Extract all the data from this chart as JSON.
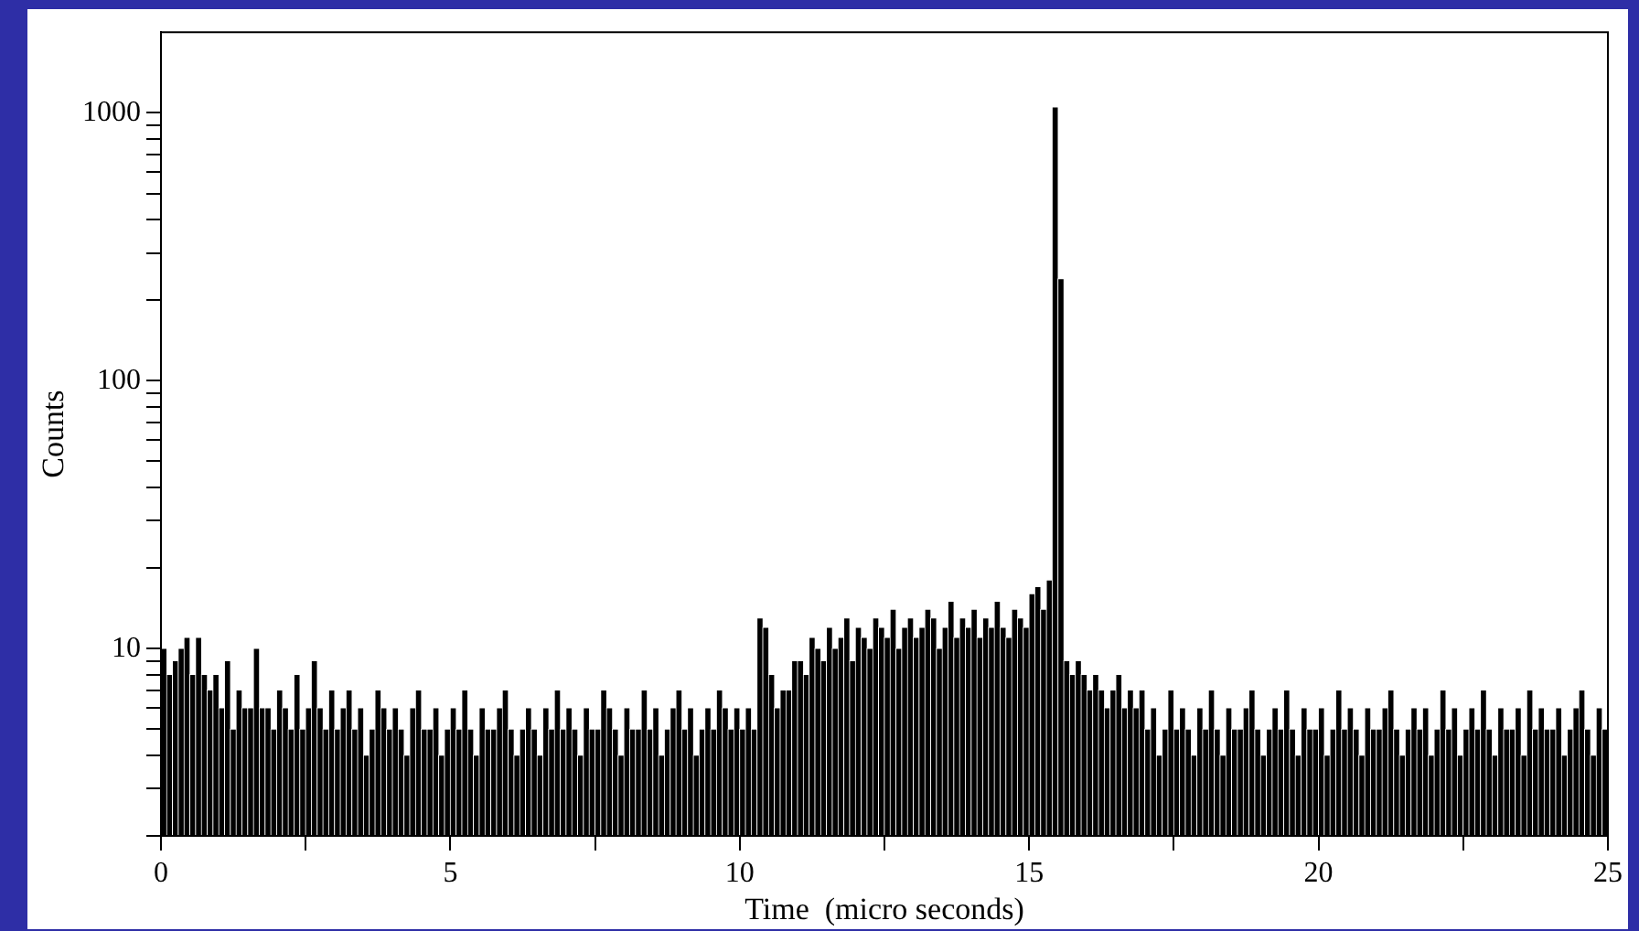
{
  "chart_data": {
    "type": "histogram",
    "xlabel": "Time  (micro seconds)",
    "ylabel": "Counts",
    "color": "#000000",
    "log": "y",
    "grid": false,
    "legend": false,
    "xlim": [
      0,
      25
    ],
    "xticks": [
      0,
      {
        "value": 2.5,
        "label": null
      },
      5,
      {
        "value": 7.5,
        "label": null
      },
      10,
      {
        "value": 12.5,
        "label": null
      },
      15,
      {
        "value": 17.5,
        "label": null
      },
      20,
      {
        "value": 22.5,
        "label": null
      },
      25
    ],
    "ylim": [
      2,
      2000
    ],
    "yticks": [
      {
        "value": 2,
        "label": null
      },
      {
        "value": 3,
        "label": null
      },
      {
        "value": 4,
        "label": null
      },
      {
        "value": 5,
        "label": null
      },
      {
        "value": 6,
        "label": null
      },
      {
        "value": 7,
        "label": null
      },
      {
        "value": 8,
        "label": null
      },
      {
        "value": 9,
        "label": null
      },
      10,
      {
        "value": 20,
        "label": null
      },
      {
        "value": 30,
        "label": null
      },
      {
        "value": 40,
        "label": null
      },
      {
        "value": 50,
        "label": null
      },
      {
        "value": 60,
        "label": null
      },
      {
        "value": 70,
        "label": null
      },
      {
        "value": 80,
        "label": null
      },
      {
        "value": 90,
        "label": null
      },
      100,
      {
        "value": 200,
        "label": null
      },
      {
        "value": 300,
        "label": null
      },
      {
        "value": 400,
        "label": null
      },
      {
        "value": 500,
        "label": null
      },
      {
        "value": 600,
        "label": null
      },
      {
        "value": 700,
        "label": null
      },
      {
        "value": 800,
        "label": null
      },
      {
        "value": 900,
        "label": null
      },
      1000
    ],
    "bins": [
      0,
      0.1,
      0.2,
      0.3,
      0.4,
      0.5,
      0.6,
      0.7,
      0.8,
      0.9,
      1,
      1.1,
      1.2,
      1.3,
      1.4,
      1.5,
      1.6,
      1.7,
      1.8,
      1.9,
      2,
      2.1,
      2.2,
      2.3,
      2.4,
      2.5,
      2.6,
      2.7,
      2.8,
      2.9,
      3,
      3.1,
      3.2,
      3.3,
      3.4,
      3.5,
      3.6,
      3.7,
      3.8,
      3.9,
      4,
      4.1,
      4.2,
      4.3,
      4.4,
      4.5,
      4.6,
      4.7,
      4.8,
      4.9,
      5,
      5.1,
      5.2,
      5.3,
      5.4,
      5.5,
      5.6,
      5.7,
      5.8,
      5.9,
      6,
      6.1,
      6.2,
      6.3,
      6.4,
      6.5,
      6.6,
      6.7,
      6.8,
      6.9,
      7,
      7.1,
      7.2,
      7.3,
      7.4,
      7.5,
      7.6,
      7.7,
      7.8,
      7.9,
      8,
      8.1,
      8.2,
      8.3,
      8.4,
      8.5,
      8.6,
      8.7,
      8.8,
      8.9,
      9,
      9.1,
      9.2,
      9.3,
      9.4,
      9.5,
      9.6,
      9.7,
      9.8,
      9.9,
      10,
      10.1,
      10.2,
      10.3,
      10.4,
      10.5,
      10.6,
      10.7,
      10.8,
      10.9,
      11,
      11.1,
      11.2,
      11.3,
      11.4,
      11.5,
      11.6,
      11.7,
      11.8,
      11.9,
      12,
      12.1,
      12.2,
      12.3,
      12.4,
      12.5,
      12.6,
      12.7,
      12.8,
      12.9,
      13,
      13.1,
      13.2,
      13.3,
      13.4,
      13.5,
      13.6,
      13.7,
      13.8,
      13.9,
      14,
      14.1,
      14.2,
      14.3,
      14.4,
      14.5,
      14.6,
      14.7,
      14.8,
      14.9,
      15,
      15.1,
      15.2,
      15.3,
      15.4,
      15.5,
      15.6,
      15.7,
      15.8,
      15.9,
      16,
      16.1,
      16.2,
      16.3,
      16.4,
      16.5,
      16.6,
      16.7,
      16.8,
      16.9,
      17,
      17.1,
      17.2,
      17.3,
      17.4,
      17.5,
      17.6,
      17.7,
      17.8,
      17.9,
      18,
      18.1,
      18.2,
      18.3,
      18.4,
      18.5,
      18.6,
      18.7,
      18.8,
      18.9,
      19,
      19.1,
      19.2,
      19.3,
      19.4,
      19.5,
      19.6,
      19.7,
      19.8,
      19.9,
      20,
      20.1,
      20.2,
      20.3,
      20.4,
      20.5,
      20.6,
      20.7,
      20.8,
      20.9,
      21,
      21.1,
      21.2,
      21.3,
      21.4,
      21.5,
      21.6,
      21.7,
      21.8,
      21.9,
      22,
      22.1,
      22.2,
      22.3,
      22.4,
      22.5,
      22.6,
      22.7,
      22.8,
      22.9,
      23,
      23.1,
      23.2,
      23.3,
      23.4,
      23.5,
      23.6,
      23.7,
      23.8,
      23.9,
      24,
      24.1,
      24.2,
      24.3,
      24.4,
      24.5,
      24.6,
      24.7,
      24.8,
      24.9,
      25
    ],
    "values": [
      10,
      8,
      9,
      10,
      11,
      8,
      11,
      8,
      7,
      8,
      6,
      9,
      5,
      7,
      6,
      6,
      10,
      6,
      6,
      5,
      7,
      6,
      5,
      8,
      5,
      6,
      9,
      6,
      5,
      7,
      5,
      6,
      7,
      5,
      6,
      4,
      5,
      7,
      6,
      5,
      6,
      5,
      4,
      6,
      7,
      5,
      5,
      6,
      4,
      5,
      6,
      5,
      7,
      5,
      4,
      6,
      5,
      5,
      6,
      7,
      5,
      4,
      5,
      6,
      5,
      4,
      6,
      5,
      7,
      5,
      6,
      5,
      4,
      6,
      5,
      5,
      7,
      6,
      5,
      4,
      6,
      5,
      5,
      7,
      5,
      6,
      4,
      5,
      6,
      7,
      5,
      6,
      4,
      5,
      6,
      5,
      7,
      6,
      5,
      6,
      5,
      6,
      5,
      13,
      12,
      8,
      6,
      7,
      7,
      9,
      9,
      8,
      11,
      10,
      9,
      12,
      10,
      11,
      13,
      9,
      12,
      11,
      10,
      13,
      12,
      11,
      14,
      10,
      12,
      13,
      11,
      12,
      14,
      13,
      10,
      12,
      15,
      11,
      13,
      12,
      14,
      11,
      13,
      12,
      15,
      12,
      11,
      14,
      13,
      12,
      16,
      17,
      14,
      18,
      1050,
      240,
      9,
      8,
      9,
      8,
      7,
      8,
      7,
      6,
      7,
      8,
      6,
      7,
      6,
      7,
      5,
      6,
      4,
      5,
      7,
      5,
      6,
      5,
      4,
      6,
      5,
      7,
      5,
      4,
      6,
      5,
      5,
      6,
      7,
      5,
      4,
      5,
      6,
      5,
      7,
      5,
      4,
      6,
      5,
      5,
      6,
      4,
      5,
      7,
      5,
      6,
      5,
      4,
      6,
      5,
      5,
      6,
      7,
      5,
      4,
      5,
      6,
      5,
      6,
      4,
      5,
      7,
      5,
      6,
      4,
      5,
      6,
      5,
      7,
      5,
      4,
      6,
      5,
      5,
      6,
      4,
      7,
      5,
      6,
      5,
      5,
      6,
      4,
      5,
      6,
      7,
      5,
      4,
      6,
      5
    ]
  }
}
